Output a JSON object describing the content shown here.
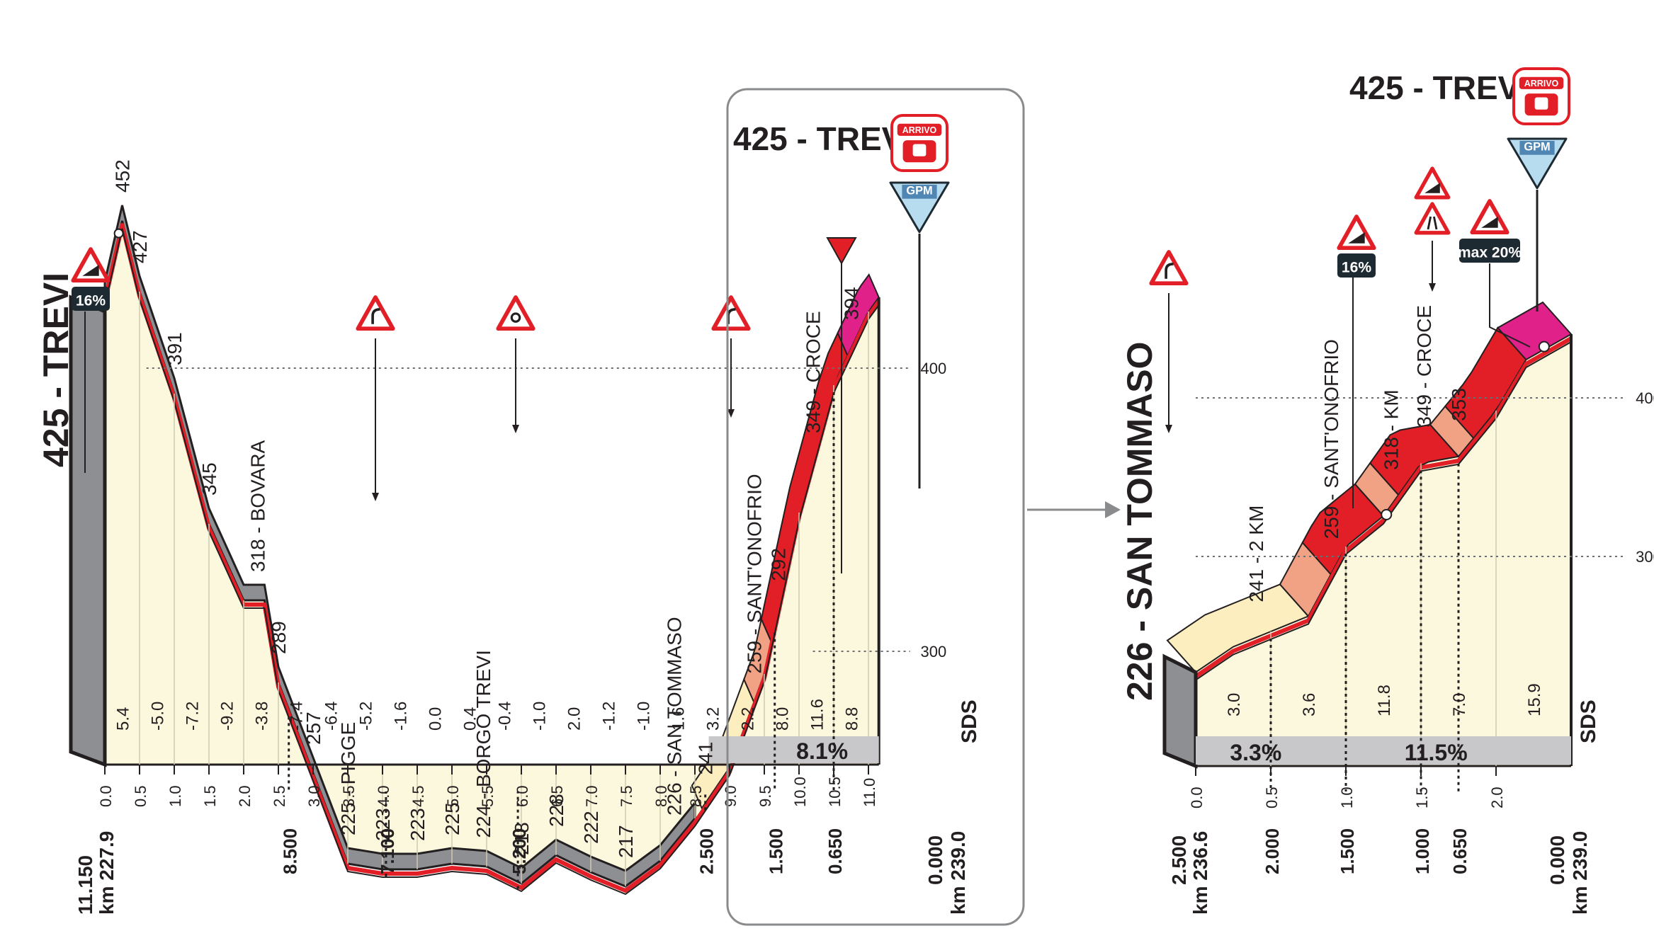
{
  "colors": {
    "cream": "#fbf8de",
    "grey": "#8e8f92",
    "red": "#e21f26",
    "pink": "#e0218a",
    "salmon": "#f2a284",
    "light": "#fdeebf",
    "dark": "#231f20",
    "badge": "#1e2a32",
    "gpm": "#b7dcef"
  },
  "left_profile": {
    "start_title": "425 - TREVI",
    "start_km": "km 227.9",
    "start_remaining": "11.150",
    "end_km": "km 239.0",
    "end_remaining": "0.000",
    "ticks_x": [
      "0.0",
      "0.5",
      "1.0",
      "1.5",
      "2.0",
      "2.5",
      "3.0",
      "3.5",
      "4.0",
      "4.5",
      "5.0",
      "5.5",
      "6.0",
      "6.5",
      "7.0",
      "7.5",
      "8.0",
      "8.5",
      "9.0",
      "9.5",
      "10.0",
      "10.5",
      "11.0"
    ],
    "gradients": [
      "5.4",
      "-5.0",
      "-7.2",
      "-9.2",
      "-3.8",
      "-7.4",
      "-6.4",
      "-5.2",
      "-1.6",
      "0.0",
      "0.4",
      "-0.4",
      "-1.0",
      "2.0",
      "-1.2",
      "-1.0",
      "1.6",
      "3.2",
      "2.2",
      "8.0",
      "11.6",
      "8.8"
    ],
    "remaining_marks": [
      {
        "km": 2.65,
        "label": "8.500"
      },
      {
        "km": 4.05,
        "label": "7.100"
      },
      {
        "km": 5.95,
        "label": "5.200"
      },
      {
        "km": 8.65,
        "label": "2.500"
      },
      {
        "km": 9.65,
        "label": "1.500"
      },
      {
        "km": 10.5,
        "label": "0.650"
      }
    ],
    "summit_label": "425 - TREVI",
    "finish_badge": "ARRIVO",
    "gpm_label": "GPM",
    "climb_avg": "8.1%",
    "alt_labels": [
      "400",
      "300"
    ],
    "brand": "SDS",
    "badge_16": "16%"
  },
  "right_profile": {
    "start_title": "226 - SAN TOMMASO",
    "start_km": "km 236.6",
    "start_remaining": "2.500",
    "end_km": "km 239.0",
    "end_remaining": "0.000",
    "ticks_x": [
      "0.0",
      "0.5",
      "1.0",
      "1.5",
      "2.0"
    ],
    "gradients": [
      "3.0",
      "3.6",
      "11.8",
      "7.0",
      "15.9"
    ],
    "remaining_marks": [
      {
        "km": 0.5,
        "label": "2.000"
      },
      {
        "km": 1.0,
        "label": "1.500"
      },
      {
        "km": 1.5,
        "label": "1.000"
      },
      {
        "km": 1.75,
        "label": "0.650"
      }
    ],
    "summit_label": "425 - TREVI",
    "finish_badge": "ARRIVO",
    "gpm_label": "GPM",
    "section_avg": [
      "3.3%",
      "11.5%"
    ],
    "alt_labels": [
      "400",
      "300"
    ],
    "brand": "SDS",
    "badge_16": "16%",
    "badge_max": "max 20%"
  },
  "chart_data": [
    {
      "type": "area",
      "title": "425 - TREVI",
      "xlabel": "km",
      "ylabel": "",
      "x": [
        0.0,
        0.25,
        0.5,
        1.0,
        1.5,
        2.0,
        2.3,
        2.5,
        3.0,
        3.5,
        4.0,
        4.5,
        5.0,
        5.5,
        6.0,
        6.5,
        7.0,
        7.5,
        8.0,
        8.5,
        9.0,
        9.5,
        10.0,
        10.5,
        11.0,
        11.15
      ],
      "altitude": [
        425,
        452,
        427,
        391,
        345,
        318,
        318,
        289,
        257,
        225,
        223,
        223,
        225,
        224,
        218,
        228,
        222,
        217,
        226,
        241,
        259,
        292,
        349,
        394,
        420,
        425
      ],
      "point_labels": [
        {
          "km": 0.25,
          "text": "452"
        },
        {
          "km": 0.5,
          "text": "427"
        },
        {
          "km": 1.0,
          "text": "391"
        },
        {
          "km": 1.5,
          "text": "345"
        },
        {
          "km": 2.2,
          "text": "318 - BOVARA"
        },
        {
          "km": 2.5,
          "text": "289"
        },
        {
          "km": 3.0,
          "text": "257"
        },
        {
          "km": 3.5,
          "text": "225 - PIGGE"
        },
        {
          "km": 4.0,
          "text": "223"
        },
        {
          "km": 4.5,
          "text": "223"
        },
        {
          "km": 5.0,
          "text": "225"
        },
        {
          "km": 5.45,
          "text": "224 - BORGO TREVI"
        },
        {
          "km": 6.0,
          "text": "218"
        },
        {
          "km": 6.5,
          "text": "228"
        },
        {
          "km": 7.0,
          "text": "222"
        },
        {
          "km": 7.5,
          "text": "217"
        },
        {
          "km": 8.2,
          "text": "226 - SAN TOMMASO"
        },
        {
          "km": 8.65,
          "text": "241"
        },
        {
          "km": 9.35,
          "text": "259 - SANT'ONOFRIO"
        },
        {
          "km": 9.7,
          "text": "292"
        },
        {
          "km": 10.2,
          "text": "349 - CROCE"
        },
        {
          "km": 10.75,
          "text": "394"
        }
      ]
    },
    {
      "type": "area",
      "title": "425 - TREVI",
      "xlabel": "km",
      "ylabel": "",
      "x": [
        0.0,
        0.25,
        0.5,
        0.75,
        1.0,
        1.25,
        1.5,
        1.75,
        2.0,
        2.2,
        2.5
      ],
      "altitude": [
        226,
        241,
        250,
        259,
        300,
        318,
        349,
        353,
        380,
        410,
        425
      ],
      "point_labels": [
        {
          "km": 0.4,
          "text": "241 - 2 KM"
        },
        {
          "km": 0.9,
          "text": "259 - SANT'ONOFRIO"
        },
        {
          "km": 1.3,
          "text": "318 - KM"
        },
        {
          "km": 1.52,
          "text": "349 - CROCE"
        },
        {
          "km": 1.75,
          "text": "353"
        }
      ]
    }
  ]
}
